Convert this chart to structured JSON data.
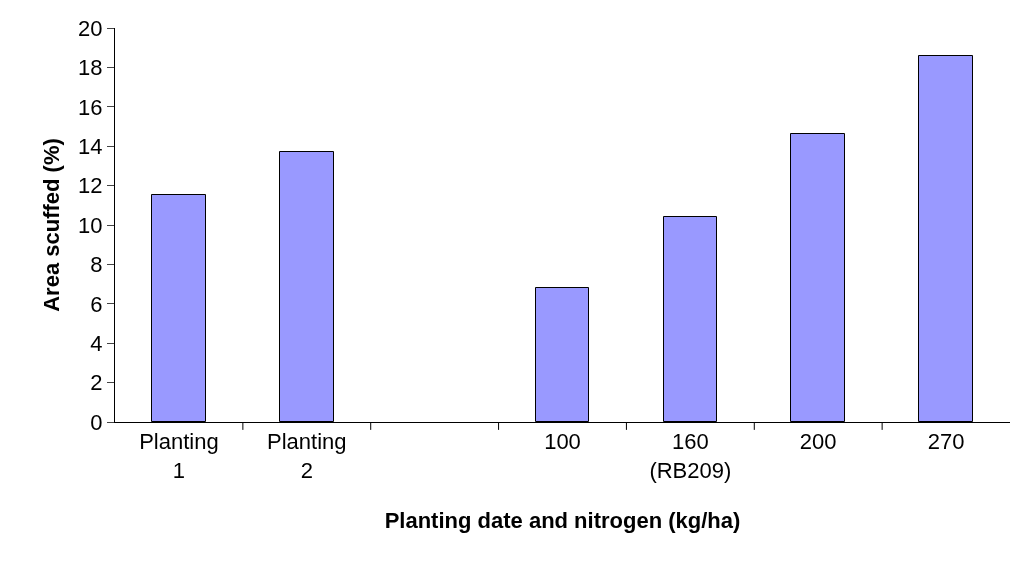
{
  "chart_data": {
    "type": "bar",
    "xlabel": "Planting date and nitrogen (kg/ha)",
    "ylabel": "Area scuffed (%)",
    "categories": [
      "Planting\n1",
      "Planting\n2",
      null,
      "100",
      "160\n(RB209)",
      "200",
      "270"
    ],
    "values": [
      11.5,
      13.7,
      null,
      6.8,
      10.4,
      14.6,
      18.6
    ],
    "color": "#9999ff",
    "ylim": [
      0,
      20
    ],
    "yticks": [
      0,
      2,
      4,
      6,
      8,
      10,
      12,
      14,
      16,
      18,
      20
    ],
    "grid": false,
    "legend": false
  }
}
